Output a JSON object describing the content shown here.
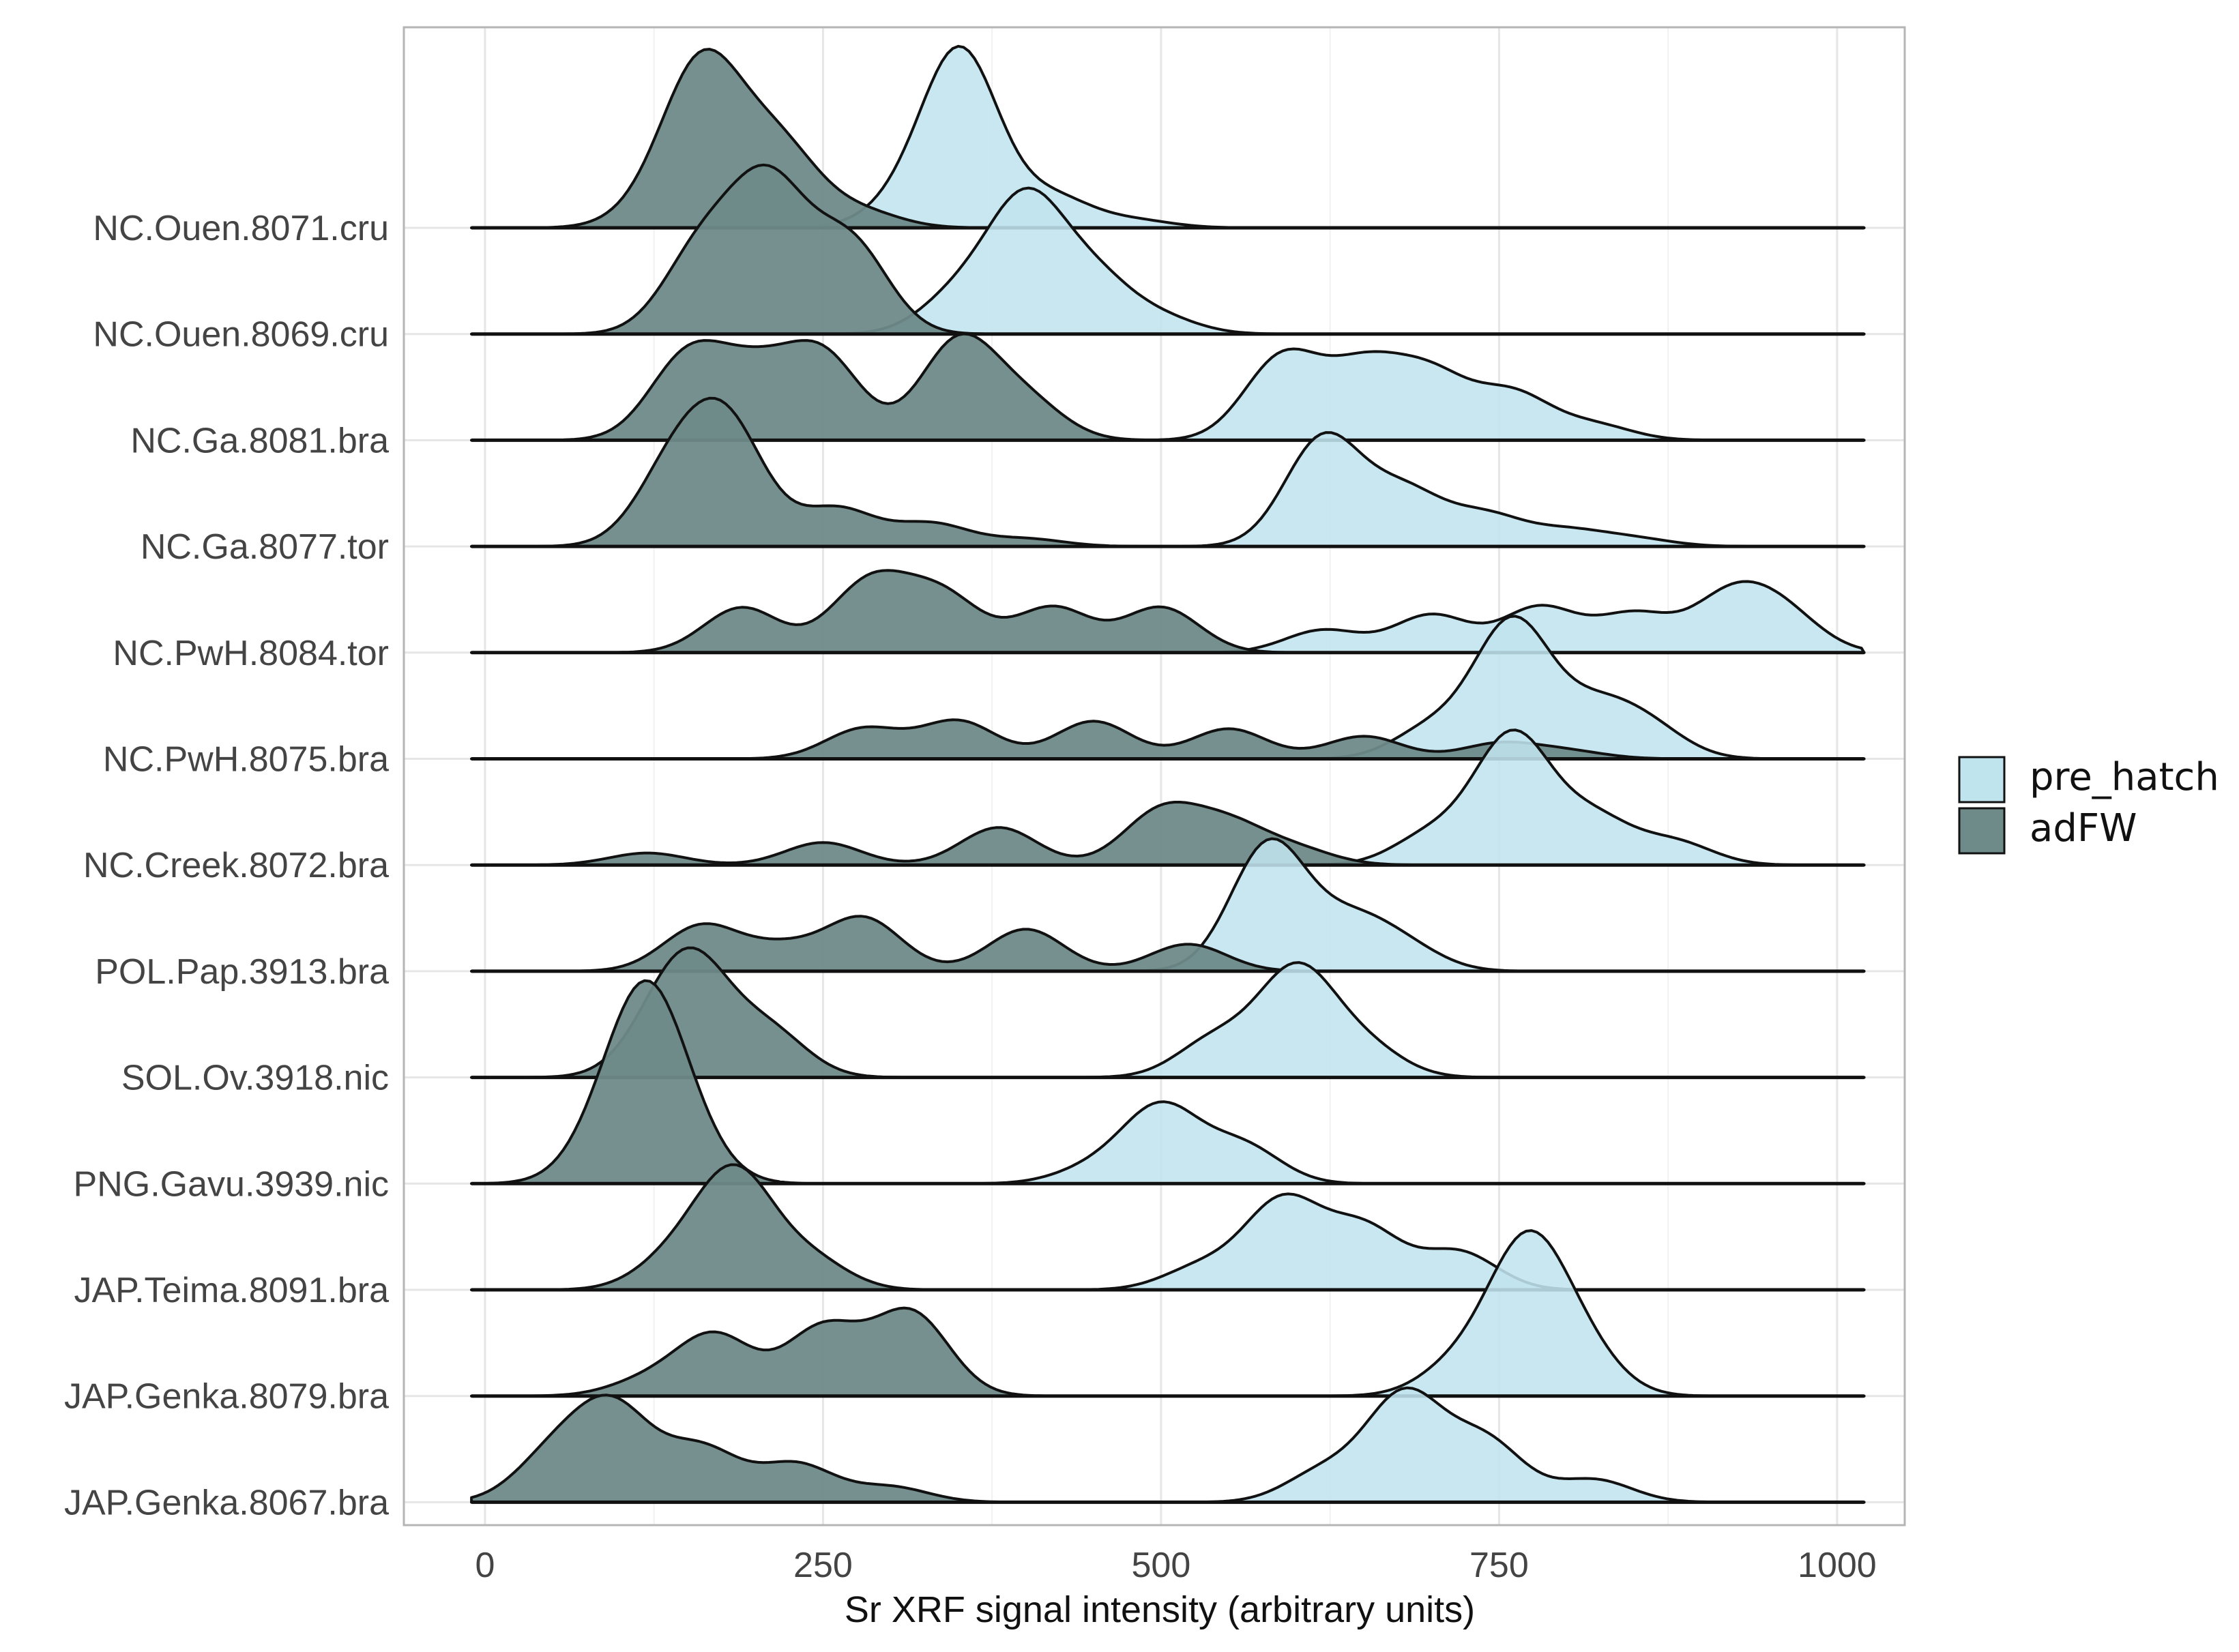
{
  "chart_data": {
    "type": "ridgeline",
    "title": "",
    "xlabel": "Sr XRF signal intensity (arbitrary units)",
    "ylabel": "",
    "xlim": [
      -60,
      1050
    ],
    "x_ticks": [
      0,
      250,
      500,
      750,
      1000
    ],
    "x_tick_labels": [
      "0",
      "250",
      "500",
      "750",
      "1000"
    ],
    "grid": true,
    "legend": {
      "position": "right",
      "entries": [
        {
          "name": "pre_hatch",
          "color": "#c0e4ee"
        },
        {
          "name": "adFW",
          "color": "#6e8a89"
        }
      ]
    },
    "colors": {
      "pre_hatch_fill": "#c0e4ee",
      "adFW_fill": "#6e8a89",
      "adFW_opacity": 0.95,
      "pre_hatch_opacity": 0.88,
      "outline": "#111111",
      "grid": "#e6e6e6",
      "panel_border": "#b5b5b5"
    },
    "line_range": [
      -10,
      1020
    ],
    "categories": [
      "NC.Ouen.8071.cru",
      "NC.Ouen.8069.cru",
      "NC.Ga.8081.bra",
      "NC.Ga.8077.tor",
      "NC.PwH.8084.tor",
      "NC.PwH.8075.bra",
      "NC.Creek.8072.bra",
      "POL.Pap.3913.bra",
      "SOL.Ov.3918.nic",
      "PNG.Gavu.3939.nic",
      "JAP.Teima.8091.bra",
      "JAP.Genka.8079.bra",
      "JAP.Genka.8067.bra"
    ],
    "series": [
      {
        "name": "adFW",
        "densities": [
          [
            [
              160,
              1.0
            ],
            [
              225,
              0.35
            ],
            [
              200,
              0.28
            ],
            [
              280,
              0.1
            ],
            [
              125,
              0.12
            ]
          ],
          [
            [
              160,
              0.55
            ],
            [
              210,
              0.55
            ],
            [
              270,
              0.6
            ],
            [
              210,
              0.4
            ]
          ],
          [
            [
              150,
              0.55
            ],
            [
              250,
              0.55
            ],
            [
              350,
              0.65
            ],
            [
              200,
              0.4
            ],
            [
              400,
              0.25
            ]
          ],
          [
            [
              180,
              0.75
            ],
            [
              140,
              0.5
            ],
            [
              260,
              0.25
            ],
            [
              330,
              0.15
            ],
            [
              400,
              0.05
            ]
          ],
          [
            [
              190,
              0.3
            ],
            [
              280,
              0.35
            ],
            [
              340,
              0.35
            ],
            [
              420,
              0.3
            ],
            [
              500,
              0.3
            ],
            [
              300,
              0.15
            ]
          ],
          [
            [
              280,
              0.2
            ],
            [
              350,
              0.25
            ],
            [
              450,
              0.25
            ],
            [
              550,
              0.2
            ],
            [
              650,
              0.15
            ],
            [
              750,
              0.1
            ],
            [
              800,
              0.05
            ]
          ],
          [
            [
              120,
              0.08
            ],
            [
              250,
              0.15
            ],
            [
              380,
              0.25
            ],
            [
              500,
              0.35
            ],
            [
              550,
              0.25
            ],
            [
              600,
              0.1
            ]
          ],
          [
            [
              160,
              0.3
            ],
            [
              280,
              0.35
            ],
            [
              400,
              0.28
            ],
            [
              520,
              0.18
            ],
            [
              220,
              0.15
            ]
          ],
          [
            [
              155,
              0.65
            ],
            [
              210,
              0.3
            ],
            [
              130,
              0.25
            ]
          ],
          [
            [
              120,
              1.1
            ],
            [
              90,
              0.25
            ],
            [
              150,
              0.2
            ]
          ],
          [
            [
              185,
              0.75
            ],
            [
              140,
              0.2
            ],
            [
              240,
              0.2
            ]
          ],
          [
            [
              170,
              0.4
            ],
            [
              250,
              0.45
            ],
            [
              315,
              0.55
            ],
            [
              120,
              0.1
            ]
          ],
          [
            [
              95,
              0.6
            ],
            [
              50,
              0.3
            ],
            [
              160,
              0.35
            ],
            [
              230,
              0.25
            ],
            [
              300,
              0.1
            ]
          ]
        ]
      },
      {
        "name": "pre_hatch",
        "densities": [
          [
            [
              352,
              1.15
            ],
            [
              310,
              0.15
            ],
            [
              420,
              0.2
            ],
            [
              480,
              0.05
            ]
          ],
          [
            [
              400,
              0.85
            ],
            [
              350,
              0.25
            ],
            [
              450,
              0.35
            ],
            [
              500,
              0.1
            ]
          ],
          [
            [
              590,
              0.55
            ],
            [
              650,
              0.45
            ],
            [
              700,
              0.4
            ],
            [
              760,
              0.3
            ],
            [
              820,
              0.1
            ]
          ],
          [
            [
              620,
              0.72
            ],
            [
              680,
              0.35
            ],
            [
              740,
              0.2
            ],
            [
              800,
              0.1
            ],
            [
              850,
              0.05
            ]
          ],
          [
            [
              620,
              0.15
            ],
            [
              700,
              0.25
            ],
            [
              780,
              0.3
            ],
            [
              850,
              0.25
            ],
            [
              920,
              0.35
            ],
            [
              960,
              0.25
            ]
          ],
          [
            [
              760,
              0.9
            ],
            [
              700,
              0.2
            ],
            [
              820,
              0.3
            ],
            [
              860,
              0.2
            ]
          ],
          [
            [
              760,
              0.85
            ],
            [
              700,
              0.2
            ],
            [
              820,
              0.3
            ],
            [
              880,
              0.15
            ]
          ],
          [
            [
              580,
              0.85
            ],
            [
              640,
              0.3
            ],
            [
              680,
              0.15
            ]
          ],
          [
            [
              600,
              0.7
            ],
            [
              540,
              0.25
            ],
            [
              650,
              0.2
            ]
          ],
          [
            [
              500,
              0.5
            ],
            [
              560,
              0.25
            ],
            [
              450,
              0.1
            ]
          ],
          [
            [
              590,
              0.58
            ],
            [
              530,
              0.15
            ],
            [
              650,
              0.4
            ],
            [
              720,
              0.25
            ]
          ],
          [
            [
              770,
              0.95
            ],
            [
              720,
              0.2
            ],
            [
              810,
              0.3
            ]
          ],
          [
            [
              680,
              0.7
            ],
            [
              620,
              0.2
            ],
            [
              740,
              0.4
            ],
            [
              820,
              0.15
            ]
          ]
        ]
      }
    ]
  }
}
